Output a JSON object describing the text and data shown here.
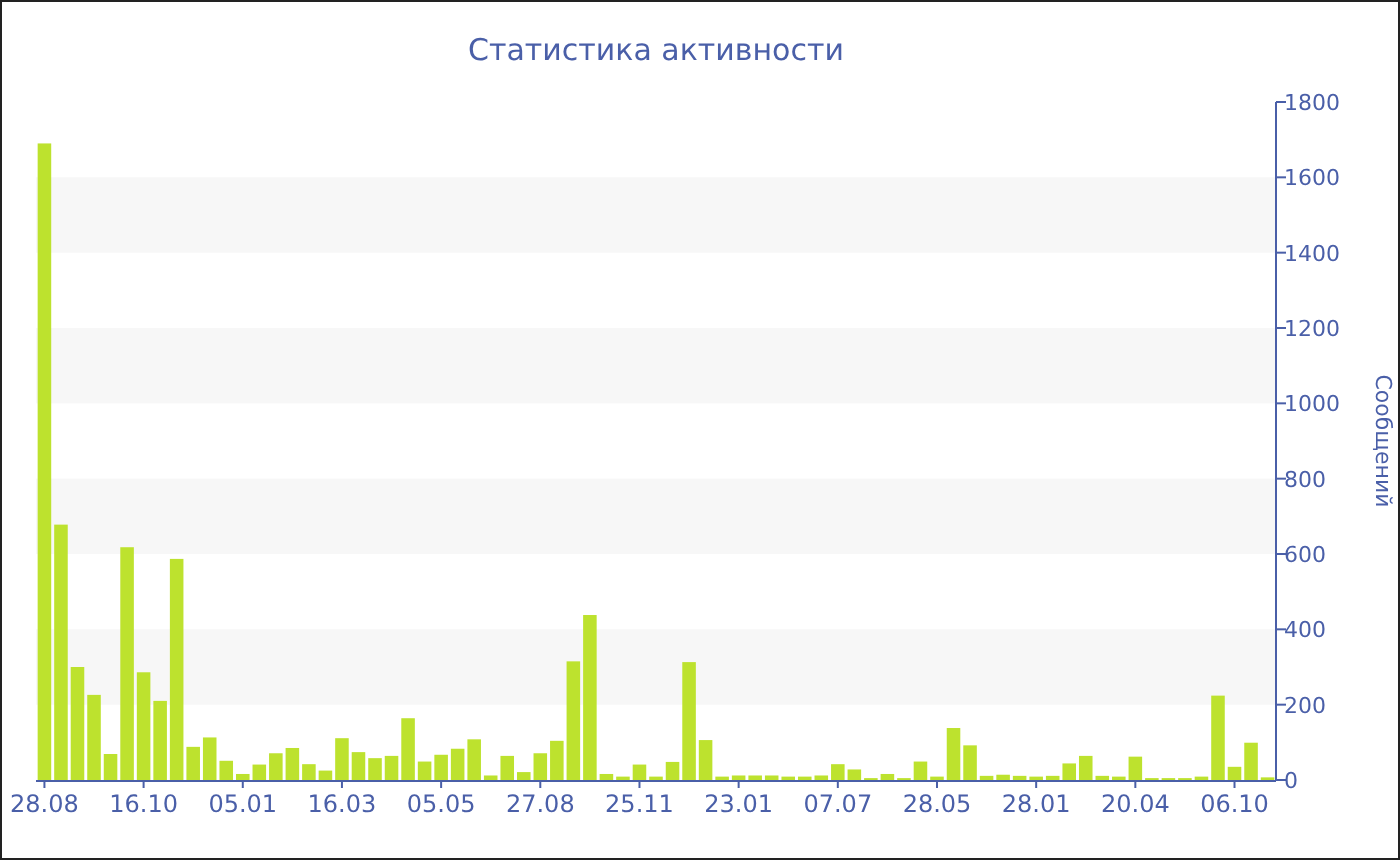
{
  "chart_data": {
    "type": "bar",
    "title": "Статистика активности",
    "ylabel": "Сообщений",
    "categories": [
      "28.08",
      null,
      null,
      null,
      null,
      null,
      "16.10",
      null,
      null,
      null,
      null,
      null,
      "05.01",
      null,
      null,
      null,
      null,
      null,
      "16.03",
      null,
      null,
      null,
      null,
      null,
      "05.05",
      null,
      null,
      null,
      null,
      null,
      "27.08",
      null,
      null,
      null,
      null,
      null,
      "25.11",
      null,
      null,
      null,
      null,
      null,
      "23.01",
      null,
      null,
      null,
      null,
      null,
      "07.07",
      null,
      null,
      null,
      null,
      null,
      "28.05",
      null,
      null,
      null,
      null,
      null,
      "28.01",
      null,
      null,
      null,
      null,
      null,
      "20.04",
      null,
      null,
      null,
      null,
      null,
      "06.10",
      null,
      null
    ],
    "values": [
      1690,
      678,
      300,
      226,
      69,
      618,
      286,
      210,
      587,
      88,
      113,
      51,
      16,
      41,
      71,
      85,
      42,
      25,
      111,
      74,
      58,
      64,
      164,
      49,
      67,
      83,
      108,
      12,
      64,
      21,
      71,
      104,
      315,
      438,
      16,
      9,
      41,
      9,
      48,
      313,
      106,
      9,
      12,
      12,
      12,
      9,
      9,
      12,
      42,
      28,
      5,
      16,
      5,
      49,
      9,
      138,
      92,
      11,
      14,
      11,
      9,
      11,
      44,
      64,
      11,
      9,
      62,
      5,
      5,
      5,
      9,
      224,
      35,
      99,
      7
    ],
    "color": "#bde22e",
    "ylim": [
      0,
      1800
    ],
    "yticks": [
      0,
      200,
      400,
      600,
      800,
      1000,
      1200,
      1400,
      1600,
      1800
    ],
    "bands": [
      {
        "axis": "y",
        "from": 200,
        "to": 400,
        "color": "#f7f7f7"
      },
      {
        "axis": "y",
        "from": 600,
        "to": 800,
        "color": "#f7f7f7"
      },
      {
        "axis": "y",
        "from": 1000,
        "to": 1200,
        "color": "#f7f7f7"
      },
      {
        "axis": "y",
        "from": 1400,
        "to": 1600,
        "color": "#f7f7f7"
      }
    ]
  }
}
